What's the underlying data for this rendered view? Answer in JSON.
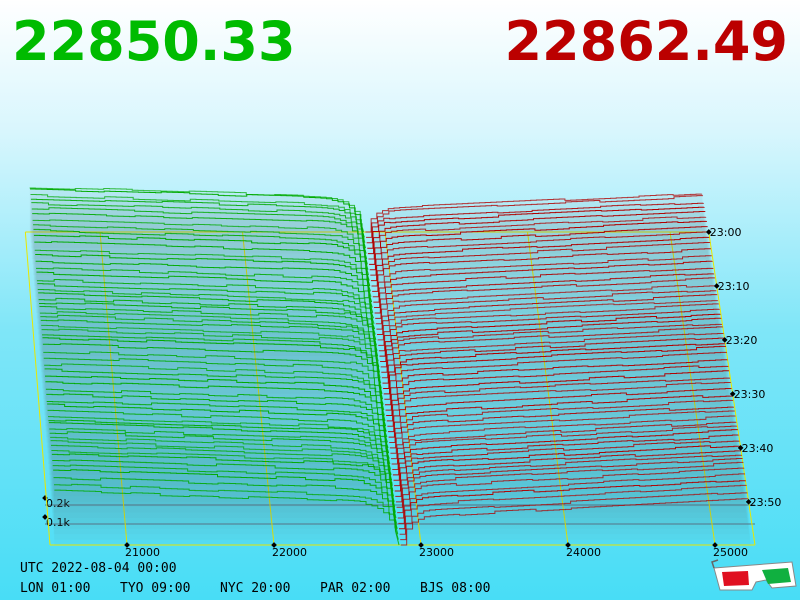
{
  "bid_price": 22850.33,
  "ask_price": 22862.49,
  "chart_data": {
    "type": "depth3d",
    "xlim": [
      20476,
      25272
    ],
    "xticks": [
      21000,
      22000,
      23000,
      24000,
      25000
    ],
    "depth_ticks": [
      {
        "value": 100,
        "label": "0.1k"
      },
      {
        "value": 200,
        "label": "0.2k"
      }
    ],
    "times": [
      "23:00",
      "23:10",
      "23:20",
      "23:30",
      "23:40",
      "23:50"
    ],
    "colors": {
      "bids": "#00aa00",
      "asks": "#b00000",
      "grid": "#e8e800"
    }
  },
  "footer": {
    "utc": "UTC 2022-08-04 00:00",
    "zones": [
      "LON 01:00",
      "TYO 09:00",
      "NYC 20:00",
      "PAR 02:00",
      "BJS 08:00"
    ]
  }
}
